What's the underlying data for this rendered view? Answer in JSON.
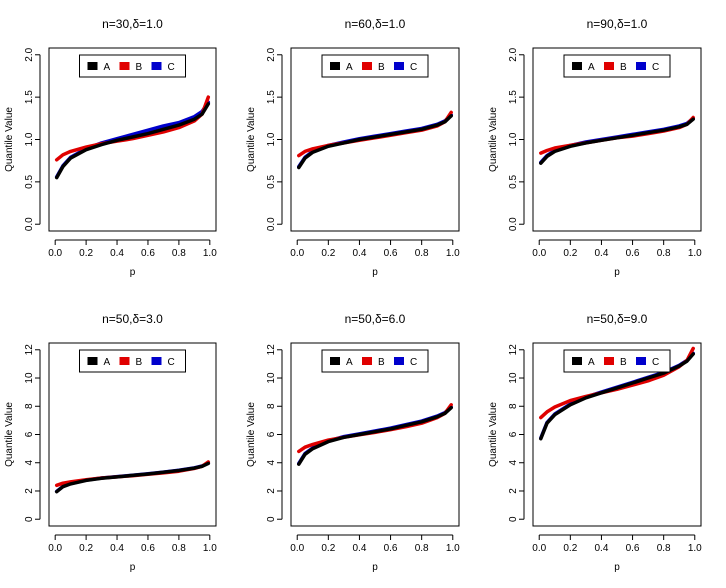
{
  "chart_data": [
    {
      "type": "line",
      "title": "n=30,δ=1.0",
      "xlabel": "p",
      "ylabel": "Quantile Value",
      "xlim": [
        0,
        1
      ],
      "ylim": [
        0,
        2
      ],
      "xticks": [
        "0.0",
        "0.2",
        "0.4",
        "0.6",
        "0.8",
        "1.0"
      ],
      "xtick_values": [
        0,
        0.2,
        0.4,
        0.6,
        0.8,
        1.0
      ],
      "yticks": [
        "0.0",
        "0.5",
        "1.0",
        "1.5",
        "2.0"
      ],
      "ytick_values": [
        0,
        0.5,
        1.0,
        1.5,
        2.0
      ],
      "legend_position": "top-center",
      "x": [
        0.01,
        0.05,
        0.1,
        0.2,
        0.3,
        0.4,
        0.5,
        0.6,
        0.7,
        0.8,
        0.9,
        0.95,
        0.99
      ],
      "series": [
        {
          "name": "A",
          "color": "#000000",
          "values": [
            0.55,
            0.68,
            0.78,
            0.88,
            0.94,
            0.99,
            1.03,
            1.07,
            1.12,
            1.17,
            1.24,
            1.3,
            1.42
          ]
        },
        {
          "name": "B",
          "color": "#e00000",
          "values": [
            0.76,
            0.82,
            0.86,
            0.91,
            0.95,
            0.98,
            1.01,
            1.05,
            1.09,
            1.14,
            1.22,
            1.3,
            1.5
          ]
        },
        {
          "name": "C",
          "color": "#0000cc",
          "values": [
            0.56,
            0.69,
            0.79,
            0.89,
            0.96,
            1.01,
            1.06,
            1.11,
            1.16,
            1.2,
            1.27,
            1.33,
            1.44
          ]
        }
      ]
    },
    {
      "type": "line",
      "title": "n=60,δ=1.0",
      "xlabel": "p",
      "ylabel": "Quantile Value",
      "xlim": [
        0,
        1
      ],
      "ylim": [
        0,
        2
      ],
      "xticks": [
        "0.0",
        "0.2",
        "0.4",
        "0.6",
        "0.8",
        "1.0"
      ],
      "xtick_values": [
        0,
        0.2,
        0.4,
        0.6,
        0.8,
        1.0
      ],
      "yticks": [
        "0.0",
        "0.5",
        "1.0",
        "1.5",
        "2.0"
      ],
      "ytick_values": [
        0,
        0.5,
        1.0,
        1.5,
        2.0
      ],
      "legend_position": "top-center",
      "x": [
        0.01,
        0.05,
        0.1,
        0.2,
        0.3,
        0.4,
        0.5,
        0.6,
        0.7,
        0.8,
        0.9,
        0.95,
        0.99
      ],
      "series": [
        {
          "name": "A",
          "color": "#000000",
          "values": [
            0.67,
            0.78,
            0.85,
            0.92,
            0.96,
            1.0,
            1.03,
            1.06,
            1.09,
            1.12,
            1.17,
            1.21,
            1.28
          ]
        },
        {
          "name": "B",
          "color": "#e00000",
          "values": [
            0.81,
            0.86,
            0.89,
            0.93,
            0.96,
            0.99,
            1.02,
            1.05,
            1.08,
            1.11,
            1.16,
            1.21,
            1.32
          ]
        },
        {
          "name": "C",
          "color": "#0000cc",
          "values": [
            0.68,
            0.79,
            0.86,
            0.93,
            0.97,
            1.01,
            1.04,
            1.07,
            1.1,
            1.13,
            1.18,
            1.22,
            1.29
          ]
        }
      ]
    },
    {
      "type": "line",
      "title": "n=90,δ=1.0",
      "xlabel": "p",
      "ylabel": "Quantile Value",
      "xlim": [
        0,
        1
      ],
      "ylim": [
        0,
        2
      ],
      "xticks": [
        "0.0",
        "0.2",
        "0.4",
        "0.6",
        "0.8",
        "1.0"
      ],
      "xtick_values": [
        0,
        0.2,
        0.4,
        0.6,
        0.8,
        1.0
      ],
      "yticks": [
        "0.0",
        "0.5",
        "1.0",
        "1.5",
        "2.0"
      ],
      "ytick_values": [
        0,
        0.5,
        1.0,
        1.5,
        2.0
      ],
      "legend_position": "top-center",
      "x": [
        0.01,
        0.05,
        0.1,
        0.2,
        0.3,
        0.4,
        0.5,
        0.6,
        0.7,
        0.8,
        0.9,
        0.95,
        0.99
      ],
      "series": [
        {
          "name": "A",
          "color": "#000000",
          "values": [
            0.72,
            0.8,
            0.86,
            0.92,
            0.96,
            0.99,
            1.02,
            1.05,
            1.08,
            1.11,
            1.15,
            1.18,
            1.24
          ]
        },
        {
          "name": "B",
          "color": "#e00000",
          "values": [
            0.84,
            0.87,
            0.9,
            0.93,
            0.96,
            0.99,
            1.02,
            1.04,
            1.07,
            1.1,
            1.14,
            1.18,
            1.26
          ]
        },
        {
          "name": "C",
          "color": "#0000cc",
          "values": [
            0.73,
            0.81,
            0.87,
            0.93,
            0.97,
            1.0,
            1.03,
            1.06,
            1.09,
            1.12,
            1.16,
            1.19,
            1.25
          ]
        }
      ]
    },
    {
      "type": "line",
      "title": "n=50,δ=3.0",
      "xlabel": "p",
      "ylabel": "Quantile Value",
      "xlim": [
        0,
        1
      ],
      "ylim": [
        0,
        12
      ],
      "xticks": [
        "0.0",
        "0.2",
        "0.4",
        "0.6",
        "0.8",
        "1.0"
      ],
      "xtick_values": [
        0,
        0.2,
        0.4,
        0.6,
        0.8,
        1.0
      ],
      "yticks": [
        "0",
        "2",
        "4",
        "6",
        "8",
        "10",
        "12"
      ],
      "ytick_values": [
        0,
        2,
        4,
        6,
        8,
        10,
        12
      ],
      "legend_position": "top-center",
      "x": [
        0.01,
        0.05,
        0.1,
        0.2,
        0.3,
        0.4,
        0.5,
        0.6,
        0.7,
        0.8,
        0.9,
        0.95,
        0.99
      ],
      "series": [
        {
          "name": "A",
          "color": "#000000",
          "values": [
            1.95,
            2.3,
            2.5,
            2.75,
            2.9,
            3.0,
            3.1,
            3.2,
            3.32,
            3.45,
            3.62,
            3.75,
            3.95
          ]
        },
        {
          "name": "B",
          "color": "#e00000",
          "values": [
            2.4,
            2.55,
            2.65,
            2.8,
            2.92,
            3.0,
            3.08,
            3.18,
            3.28,
            3.4,
            3.6,
            3.75,
            4.05
          ]
        },
        {
          "name": "C",
          "color": "#0000cc",
          "values": [
            1.97,
            2.32,
            2.52,
            2.77,
            2.92,
            3.02,
            3.12,
            3.22,
            3.34,
            3.47,
            3.64,
            3.77,
            3.97
          ]
        }
      ]
    },
    {
      "type": "line",
      "title": "n=50,δ=6.0",
      "xlabel": "p",
      "ylabel": "Quantile Value",
      "xlim": [
        0,
        1
      ],
      "ylim": [
        0,
        12
      ],
      "xticks": [
        "0.0",
        "0.2",
        "0.4",
        "0.6",
        "0.8",
        "1.0"
      ],
      "xtick_values": [
        0,
        0.2,
        0.4,
        0.6,
        0.8,
        1.0
      ],
      "yticks": [
        "0",
        "2",
        "4",
        "6",
        "8",
        "10",
        "12"
      ],
      "ytick_values": [
        0,
        2,
        4,
        6,
        8,
        10,
        12
      ],
      "legend_position": "top-center",
      "x": [
        0.01,
        0.05,
        0.1,
        0.2,
        0.3,
        0.4,
        0.5,
        0.6,
        0.7,
        0.8,
        0.9,
        0.95,
        0.99
      ],
      "series": [
        {
          "name": "A",
          "color": "#000000",
          "values": [
            3.9,
            4.6,
            5.0,
            5.5,
            5.8,
            6.0,
            6.2,
            6.4,
            6.65,
            6.9,
            7.25,
            7.5,
            7.9
          ]
        },
        {
          "name": "B",
          "color": "#e00000",
          "values": [
            4.8,
            5.1,
            5.3,
            5.6,
            5.8,
            5.98,
            6.15,
            6.35,
            6.55,
            6.8,
            7.2,
            7.5,
            8.1
          ]
        },
        {
          "name": "C",
          "color": "#0000cc",
          "values": [
            3.95,
            4.65,
            5.05,
            5.55,
            5.85,
            6.05,
            6.25,
            6.45,
            6.7,
            6.95,
            7.3,
            7.55,
            7.95
          ]
        }
      ]
    },
    {
      "type": "line",
      "title": "n=50,δ=9.0",
      "xlabel": "p",
      "ylabel": "Quantile Value",
      "xlim": [
        0,
        1
      ],
      "ylim": [
        0,
        12
      ],
      "xticks": [
        "0.0",
        "0.2",
        "0.4",
        "0.6",
        "0.8",
        "1.0"
      ],
      "xtick_values": [
        0,
        0.2,
        0.4,
        0.6,
        0.8,
        1.0
      ],
      "yticks": [
        "0",
        "2",
        "4",
        "6",
        "8",
        "10",
        "12"
      ],
      "ytick_values": [
        0,
        2,
        4,
        6,
        8,
        10,
        12
      ],
      "legend_position": "top-center",
      "x": [
        0.01,
        0.05,
        0.1,
        0.2,
        0.3,
        0.4,
        0.5,
        0.6,
        0.7,
        0.8,
        0.9,
        0.95,
        0.99
      ],
      "series": [
        {
          "name": "A",
          "color": "#000000",
          "values": [
            5.7,
            6.8,
            7.4,
            8.1,
            8.6,
            8.95,
            9.3,
            9.65,
            10.0,
            10.35,
            10.85,
            11.2,
            11.7
          ]
        },
        {
          "name": "B",
          "color": "#e00000",
          "values": [
            7.2,
            7.6,
            7.95,
            8.4,
            8.7,
            8.95,
            9.2,
            9.5,
            9.8,
            10.2,
            10.8,
            11.25,
            12.1
          ]
        },
        {
          "name": "C",
          "color": "#0000cc",
          "values": [
            5.75,
            6.85,
            7.45,
            8.15,
            8.65,
            9.0,
            9.35,
            9.7,
            10.05,
            10.4,
            10.9,
            11.25,
            11.75
          ]
        }
      ]
    }
  ]
}
